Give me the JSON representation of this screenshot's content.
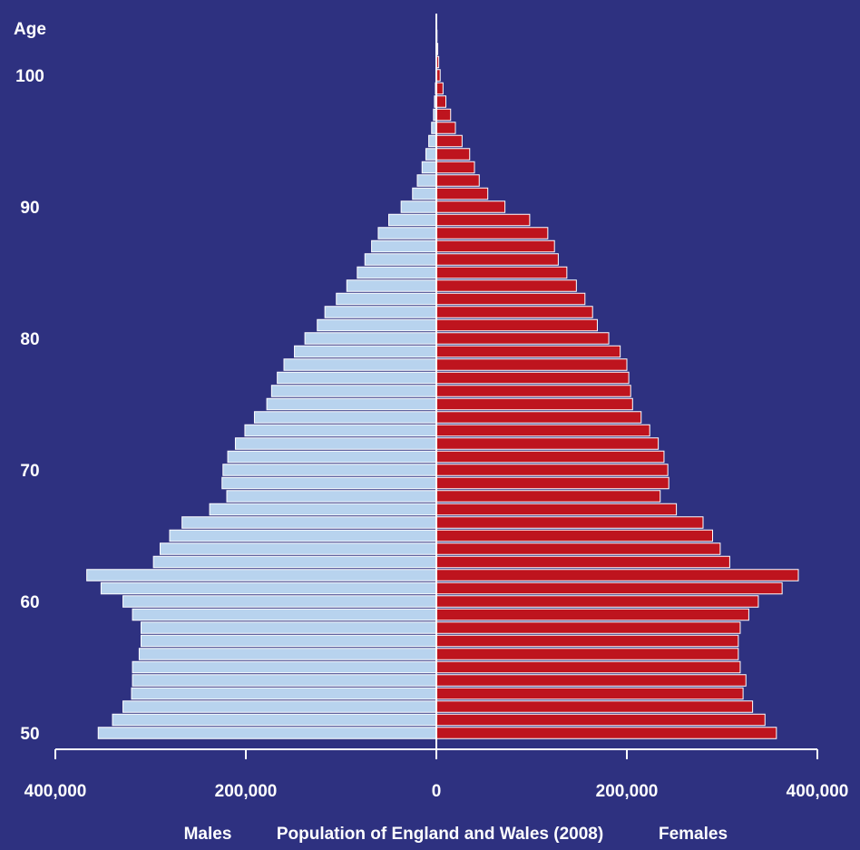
{
  "chart_data": {
    "type": "bar",
    "orientation": "horizontal",
    "layout": "population-pyramid",
    "ylabel": "Age",
    "xlabel": "Population of England and Wales (2008)",
    "male_label": "Males",
    "female_label": "Females",
    "ages": [
      50,
      51,
      52,
      53,
      54,
      55,
      56,
      57,
      58,
      59,
      60,
      61,
      62,
      63,
      64,
      65,
      66,
      67,
      68,
      69,
      70,
      71,
      72,
      73,
      74,
      75,
      76,
      77,
      78,
      79,
      80,
      81,
      82,
      83,
      84,
      85,
      86,
      87,
      88,
      89,
      90,
      91,
      92,
      93,
      94,
      95,
      96,
      97,
      98,
      99,
      100,
      101,
      102,
      103,
      104
    ],
    "series": [
      {
        "name": "Males",
        "color": "#b8d3ee",
        "values": [
          355000,
          340000,
          329000,
          320000,
          319000,
          319000,
          312000,
          310000,
          310000,
          319000,
          329000,
          352000,
          367000,
          297000,
          290000,
          280000,
          267000,
          238000,
          220000,
          225000,
          224000,
          219000,
          211000,
          201000,
          191000,
          178000,
          173000,
          167000,
          160000,
          149000,
          138000,
          125000,
          117000,
          105000,
          94000,
          83000,
          75000,
          68000,
          61000,
          50000,
          37000,
          25000,
          20000,
          15000,
          11000,
          8000,
          5000,
          3000,
          2000,
          1000,
          500,
          300,
          200,
          100,
          50
        ]
      },
      {
        "name": "Females",
        "color": "#be141e",
        "values": [
          357000,
          345000,
          332000,
          322000,
          325000,
          319000,
          317000,
          317000,
          319000,
          328000,
          338000,
          363000,
          380000,
          308000,
          298000,
          290000,
          280000,
          252000,
          235000,
          244000,
          243000,
          239000,
          233000,
          224000,
          215000,
          206000,
          204000,
          202000,
          200000,
          193000,
          181000,
          169000,
          164000,
          156000,
          147000,
          137000,
          128000,
          124000,
          117000,
          98000,
          72000,
          54000,
          45000,
          40000,
          35000,
          27000,
          20000,
          15000,
          10000,
          7000,
          4000,
          2500,
          1500,
          700,
          300
        ]
      }
    ],
    "x_ticks": [
      "400,000",
      "200,000",
      "0",
      "200,000",
      "400,000"
    ],
    "y_ticks": [
      "50",
      "60",
      "70",
      "80",
      "90",
      "100"
    ],
    "xlim": [
      -400000,
      400000
    ],
    "ylim": [
      50,
      104
    ]
  }
}
